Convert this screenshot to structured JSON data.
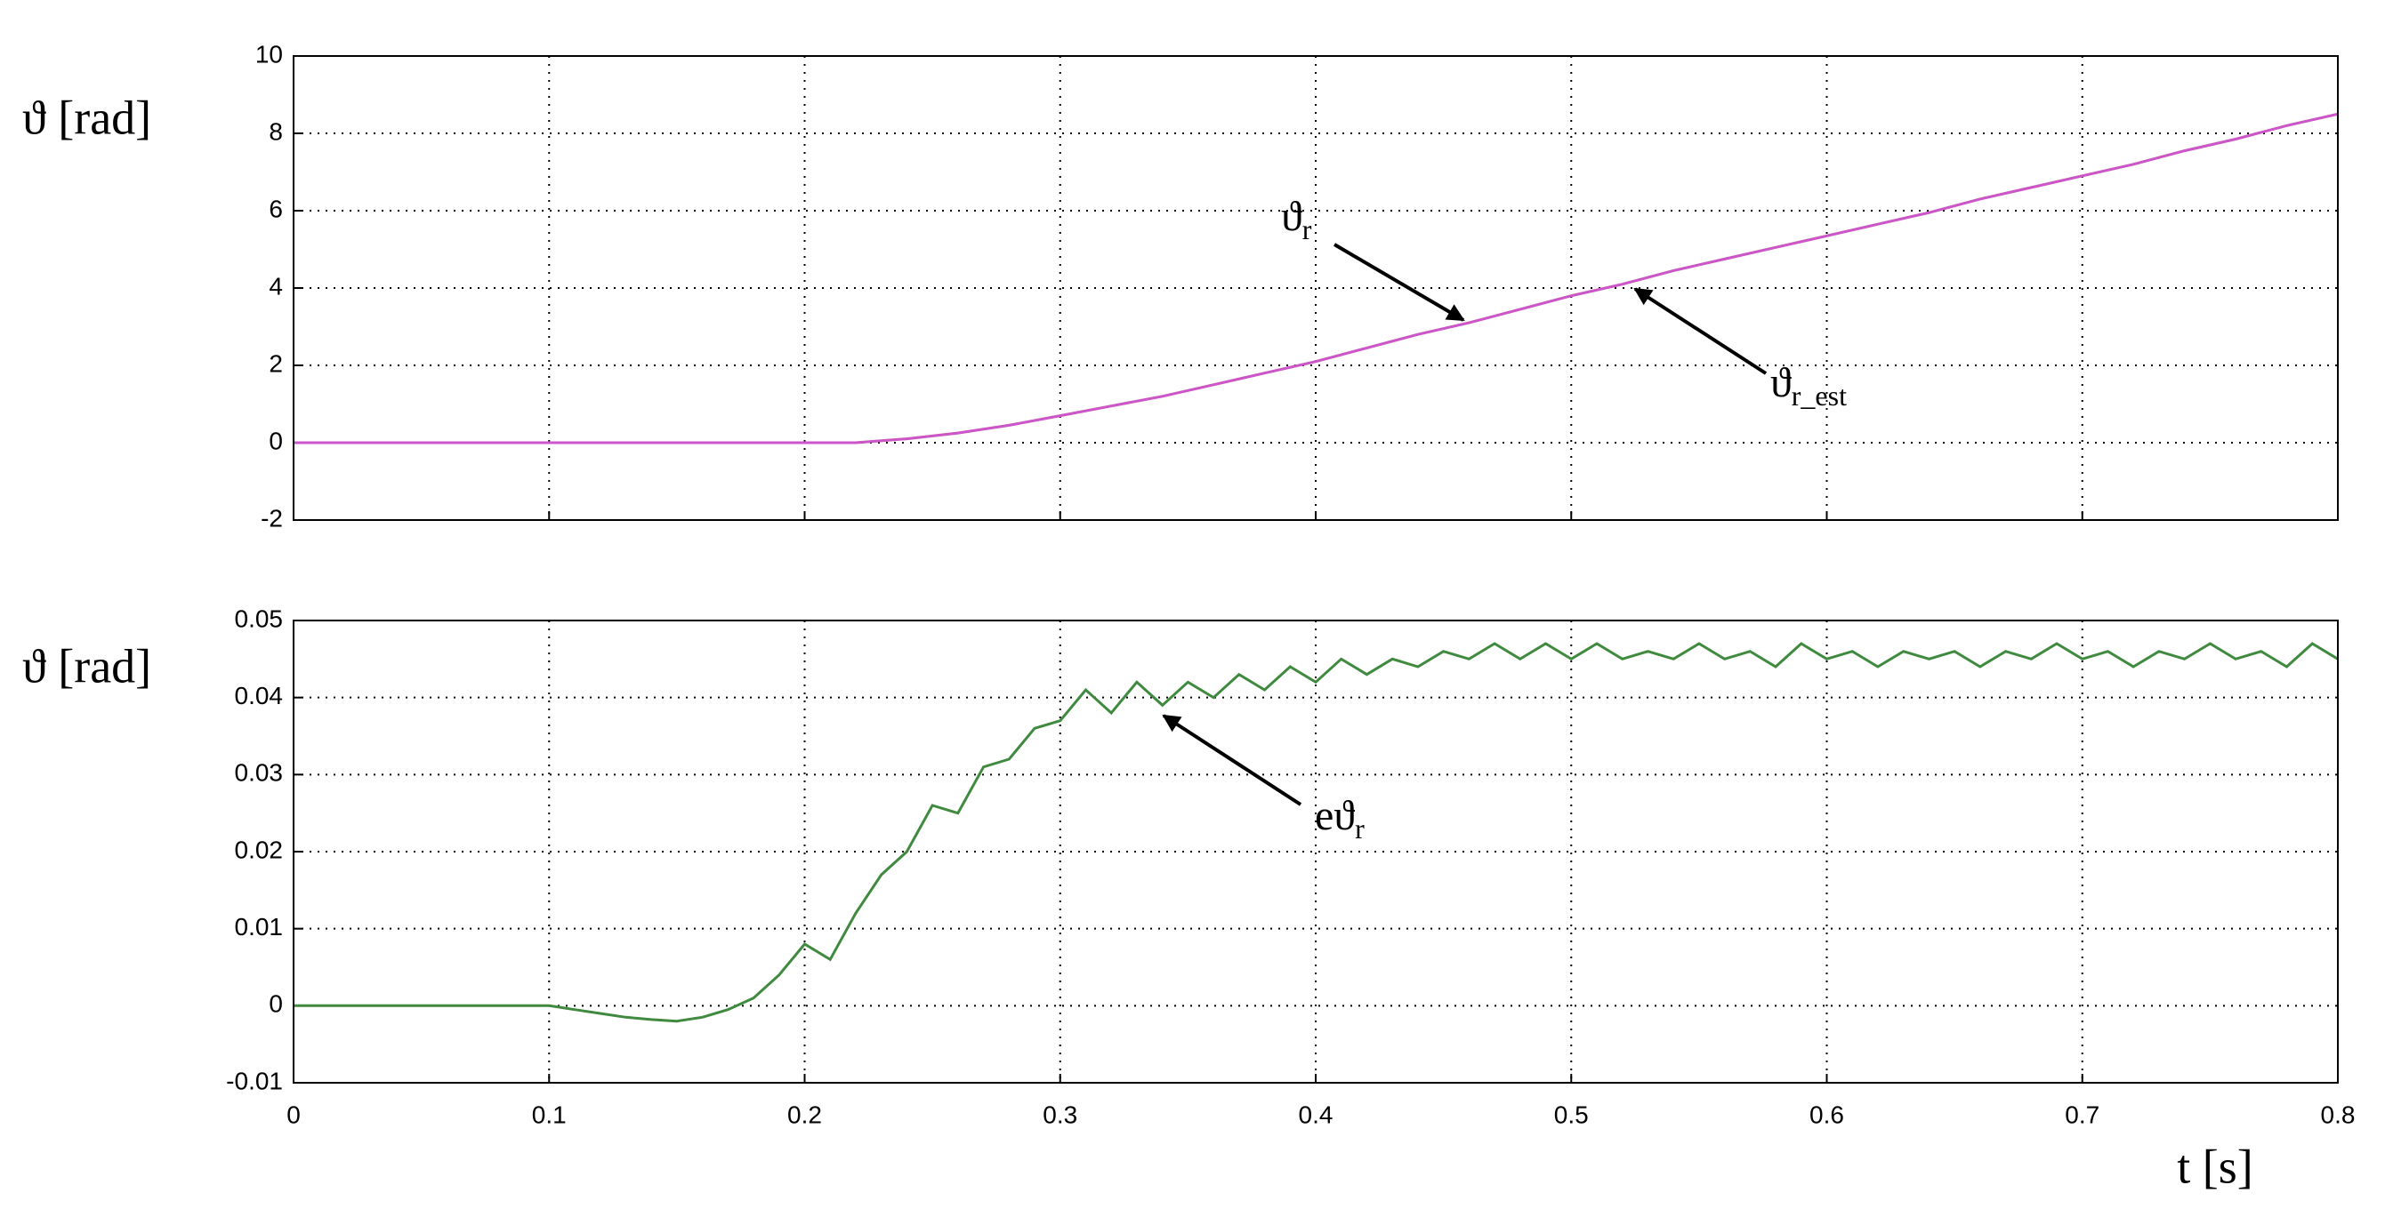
{
  "chart_data": [
    {
      "type": "line",
      "ylabel": "ϑ [rad]",
      "x": [
        0,
        0.02,
        0.04,
        0.06,
        0.08,
        0.1,
        0.12,
        0.14,
        0.16,
        0.18,
        0.2,
        0.22,
        0.24,
        0.26,
        0.28,
        0.3,
        0.32,
        0.34,
        0.36,
        0.38,
        0.4,
        0.42,
        0.44,
        0.46,
        0.48,
        0.5,
        0.52,
        0.54,
        0.56,
        0.58,
        0.6,
        0.62,
        0.64,
        0.66,
        0.68,
        0.7,
        0.72,
        0.74,
        0.76,
        0.78,
        0.8
      ],
      "series": [
        {
          "color": "#e0c84a",
          "values": [
            0,
            0,
            0,
            0,
            0,
            0,
            0,
            0,
            0,
            0,
            0,
            0,
            0.1,
            0.25,
            0.45,
            0.7,
            0.95,
            1.2,
            1.5,
            1.8,
            2.1,
            2.45,
            2.8,
            3.1,
            3.45,
            3.8,
            4.1,
            4.45,
            4.75,
            5.05,
            5.35,
            5.65,
            5.95,
            6.3,
            6.6,
            6.9,
            7.2,
            7.55,
            7.85,
            8.2,
            8.5
          ]
        },
        {
          "color": "#cc55cc",
          "values": [
            0,
            0,
            0,
            0,
            0,
            0,
            0,
            0,
            0,
            0,
            0,
            0,
            0.1,
            0.25,
            0.45,
            0.7,
            0.95,
            1.2,
            1.5,
            1.8,
            2.1,
            2.45,
            2.8,
            3.1,
            3.45,
            3.8,
            4.1,
            4.45,
            4.75,
            5.05,
            5.35,
            5.65,
            5.95,
            6.3,
            6.6,
            6.9,
            7.2,
            7.55,
            7.85,
            8.2,
            8.5
          ]
        }
      ],
      "annotations": [
        {
          "base": "ϑ",
          "sub": "r"
        },
        {
          "base": "ϑ",
          "sub": "r_est"
        }
      ],
      "xlim": [
        0,
        0.8
      ],
      "xticks": [
        0,
        0.1,
        0.2,
        0.3,
        0.4,
        0.5,
        0.6,
        0.7,
        0.8
      ],
      "ylim": [
        -2,
        10
      ],
      "yticks": [
        -2,
        0,
        2,
        4,
        6,
        8,
        10
      ],
      "grid": true
    },
    {
      "type": "line",
      "ylabel": "ϑ [rad]",
      "xlabel": "t [s]",
      "x": [
        0,
        0.01,
        0.02,
        0.03,
        0.04,
        0.05,
        0.06,
        0.07,
        0.08,
        0.09,
        0.1,
        0.11,
        0.12,
        0.13,
        0.14,
        0.15,
        0.16,
        0.17,
        0.18,
        0.19,
        0.2,
        0.21,
        0.22,
        0.23,
        0.24,
        0.25,
        0.26,
        0.27,
        0.28,
        0.29,
        0.3,
        0.31,
        0.32,
        0.33,
        0.34,
        0.35,
        0.36,
        0.37,
        0.38,
        0.39,
        0.4,
        0.41,
        0.42,
        0.43,
        0.44,
        0.45,
        0.46,
        0.47,
        0.48,
        0.49,
        0.5,
        0.51,
        0.52,
        0.53,
        0.54,
        0.55,
        0.56,
        0.57,
        0.58,
        0.59,
        0.6,
        0.61,
        0.62,
        0.63,
        0.64,
        0.65,
        0.66,
        0.67,
        0.68,
        0.69,
        0.7,
        0.71,
        0.72,
        0.73,
        0.74,
        0.75,
        0.76,
        0.77,
        0.78,
        0.79,
        0.8
      ],
      "series": [
        {
          "color": "#3f8a3f",
          "values": [
            0,
            0,
            0,
            0,
            0,
            0,
            0,
            0,
            0,
            0,
            0,
            -0.0005,
            -0.001,
            -0.0015,
            -0.0018,
            -0.002,
            -0.0015,
            -0.0005,
            0.001,
            0.004,
            0.008,
            0.006,
            0.012,
            0.017,
            0.02,
            0.026,
            0.025,
            0.031,
            0.032,
            0.036,
            0.037,
            0.041,
            0.038,
            0.042,
            0.039,
            0.042,
            0.04,
            0.043,
            0.041,
            0.044,
            0.042,
            0.045,
            0.043,
            0.045,
            0.044,
            0.046,
            0.045,
            0.047,
            0.045,
            0.047,
            0.045,
            0.047,
            0.045,
            0.046,
            0.045,
            0.047,
            0.045,
            0.046,
            0.044,
            0.047,
            0.045,
            0.046,
            0.044,
            0.046,
            0.045,
            0.046,
            0.044,
            0.046,
            0.045,
            0.047,
            0.045,
            0.046,
            0.044,
            0.046,
            0.045,
            0.047,
            0.045,
            0.046,
            0.044,
            0.047,
            0.045
          ]
        }
      ],
      "annotations": [
        {
          "base": "eϑ",
          "sub": "r"
        }
      ],
      "xlim": [
        0,
        0.8
      ],
      "xticks": [
        0,
        0.1,
        0.2,
        0.3,
        0.4,
        0.5,
        0.6,
        0.7,
        0.8
      ],
      "ylim": [
        -0.01,
        0.05
      ],
      "yticks": [
        -0.01,
        0,
        0.01,
        0.02,
        0.03,
        0.04,
        0.05
      ],
      "grid": true
    }
  ]
}
